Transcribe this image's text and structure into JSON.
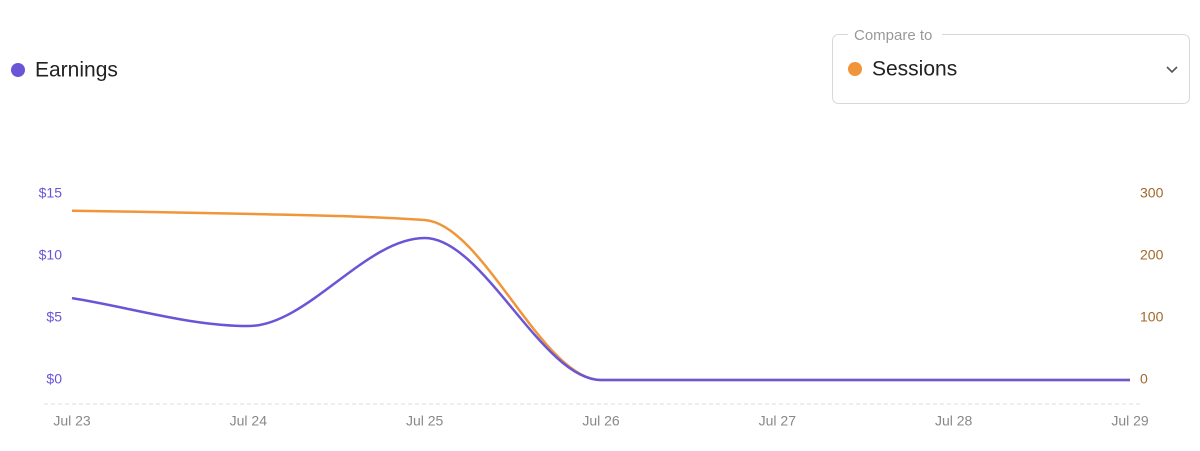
{
  "chart_data": {
    "type": "line",
    "compare_label": "Compare to",
    "categories": [
      "Jul 23",
      "Jul 24",
      "Jul 25",
      "Jul 26",
      "Jul 27",
      "Jul 28",
      "Jul 29"
    ],
    "series": [
      {
        "name": "Earnings",
        "color": "#6a55d6",
        "values": [
          6.6,
          4.35,
          11.45,
          0,
          0,
          0,
          0
        ]
      },
      {
        "name": "Sessions",
        "color": "#f0953a",
        "axis": "y2",
        "values": [
          273,
          268,
          258,
          0,
          0,
          0,
          0
        ]
      }
    ],
    "ylim": [
      0,
      15
    ],
    "yticks": [
      {
        "value": 0,
        "label": "$0"
      },
      {
        "value": 5,
        "label": "$5"
      },
      {
        "value": 10,
        "label": "$10"
      },
      {
        "value": 15,
        "label": "$15"
      }
    ],
    "y2lim": [
      0,
      300
    ],
    "y2ticks": [
      0,
      100,
      200,
      300
    ],
    "grid": false
  }
}
